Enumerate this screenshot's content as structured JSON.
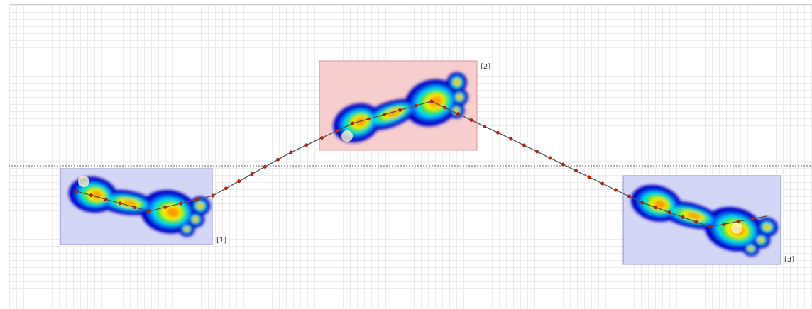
{
  "footprints": [
    {
      "label": "[1]"
    },
    {
      "label": "[2]"
    },
    {
      "label": "[3]"
    }
  ]
}
